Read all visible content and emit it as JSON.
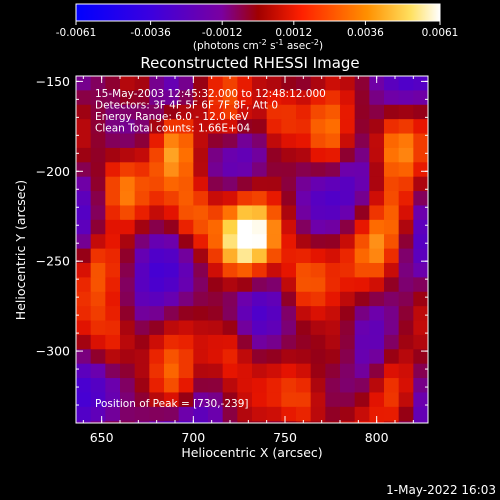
{
  "chart_data": {
    "type": "heatmap",
    "title": "Reconstructed RHESSI Image",
    "xlabel": "Heliocentric X (arcsec)",
    "ylabel": "Heliocentric Y (arcsec)",
    "xlim": [
      636,
      828
    ],
    "ylim": [
      -340,
      -147
    ],
    "x_ticks": [
      650,
      700,
      750,
      800
    ],
    "y_ticks": [
      -150,
      -200,
      -250,
      -300
    ],
    "grid": false,
    "colorbar": {
      "ticks": [
        -0.0061,
        -0.0036,
        -0.0012,
        0.0012,
        0.0036,
        0.0061
      ],
      "tick_labels": [
        "-0.0061",
        "-0.0036",
        "-0.0012",
        "0.0012",
        "0.0036",
        "0.0061"
      ],
      "units_main": "(photons cm",
      "units_sup1": "-2",
      "units_mid1": " s",
      "units_sup2": "-1",
      "units_mid2": " asec",
      "units_sup3": "-2",
      "units_end": ")",
      "colors": [
        "#0000ff",
        "#6a00c8",
        "#a00000",
        "#ff3000",
        "#ff9800",
        "#ffffff"
      ]
    },
    "info_lines": [
      "15-May-2003 12:45:32.000 to 12:48:12.000",
      "Detectors: 3F 4F 5F 6F 7F 8F, Att 0",
      "Energy Range: 6.0 - 12.0 keV",
      "Clean     Total counts: 1.66E+04"
    ],
    "peak": {
      "x": 730,
      "y": -239,
      "label": "Position of Peak = [730,-239]"
    },
    "value_range": [
      -0.0061,
      0.0061
    ],
    "sources": [
      {
        "x": 730,
        "y": -238,
        "amplitude": 0.0061
      },
      {
        "x": 660,
        "y": -210,
        "amplitude": 0.0038
      },
      {
        "x": 690,
        "y": -185,
        "amplitude": 0.004
      },
      {
        "x": 700,
        "y": -225,
        "amplitude": 0.0038
      },
      {
        "x": 745,
        "y": -170,
        "amplitude": 0.0036
      },
      {
        "x": 720,
        "y": -170,
        "amplitude": 0.0034
      },
      {
        "x": 775,
        "y": -185,
        "amplitude": 0.0034
      },
      {
        "x": 810,
        "y": -185,
        "amplitude": 0.0034
      },
      {
        "x": 760,
        "y": -260,
        "amplitude": 0.0034
      },
      {
        "x": 800,
        "y": -245,
        "amplitude": 0.0032
      },
      {
        "x": 655,
        "y": -295,
        "amplitude": 0.003
      },
      {
        "x": 720,
        "y": -300,
        "amplitude": 0.0032
      },
      {
        "x": 780,
        "y": -300,
        "amplitude": 0.003
      },
      {
        "x": 670,
        "y": -155,
        "amplitude": 0.003
      },
      {
        "x": 810,
        "y": -225,
        "amplitude": 0.003
      },
      {
        "x": 690,
        "y": -320,
        "amplitude": 0.0028
      },
      {
        "x": 760,
        "y": -330,
        "amplitude": 0.0028
      },
      {
        "x": 810,
        "y": -320,
        "amplitude": 0.0026
      },
      {
        "x": 650,
        "y": -250,
        "amplitude": 0.0028
      }
    ],
    "background_wave": {
      "amplitude": 0.0022,
      "offset": 0.0
    }
  },
  "footer": {
    "timestamp": "1-May-2022 16:03"
  }
}
